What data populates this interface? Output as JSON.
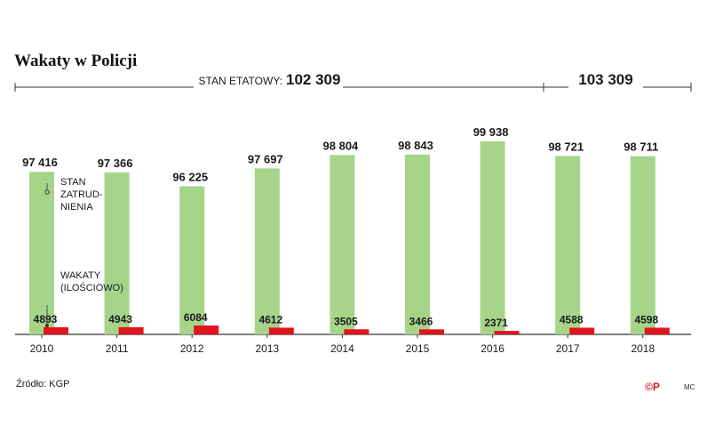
{
  "title": "Wakaty w Policji",
  "source": "Źródło: KGP",
  "logo": "©P",
  "credit": "MC",
  "colors": {
    "green": "#a6d58a",
    "red": "#e0151b",
    "text": "#1a1a1a"
  },
  "chart_data": {
    "type": "bar",
    "categories": [
      "2010",
      "2011",
      "2012",
      "2013",
      "2014",
      "2015",
      "2016",
      "2017",
      "2018"
    ],
    "series": [
      {
        "name": "STAN ZATRUDNIENIA",
        "values": [
          97416,
          97366,
          96225,
          97697,
          98804,
          98843,
          99938,
          98721,
          98711
        ],
        "labels": [
          "97 416",
          "97 366",
          "96 225",
          "97 697",
          "98 804",
          "98 843",
          "99 938",
          "98 721",
          "98 711"
        ]
      },
      {
        "name": "WAKATY (ILOŚCIOWO)",
        "values": [
          4893,
          4943,
          6084,
          4612,
          3505,
          3466,
          2371,
          4588,
          4598
        ],
        "labels": [
          "4893",
          "4943",
          "6084",
          "4612",
          "3505",
          "3466",
          "2371",
          "4588",
          "4598"
        ]
      }
    ],
    "legend_labels": {
      "stan": [
        "STAN",
        "ZATRUD-",
        "NIENIA"
      ],
      "wakaty": [
        "WAKATY",
        "(ILOŚCIOWO)"
      ]
    },
    "etat_periods": [
      {
        "label": "STAN ETATOWY:",
        "value": "102 309",
        "from": "2010",
        "to": "2016"
      },
      {
        "label": "",
        "value": "103 309",
        "from": "2017",
        "to": "2018"
      }
    ]
  }
}
